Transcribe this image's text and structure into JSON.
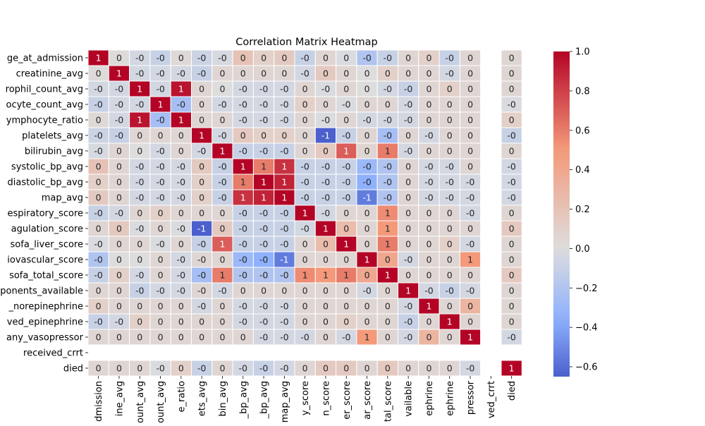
{
  "chart_data": {
    "type": "heatmap",
    "title": "Correlation Matrix Heatmap",
    "row_labels": [
      "ge_at_admission",
      "creatinine_avg",
      "rophil_count_avg",
      "ocyte_count_avg",
      "ymphocyte_ratio",
      "platelets_avg",
      "bilirubin_avg",
      "systolic_bp_avg",
      "diastolic_bp_avg",
      "map_avg",
      "espiratory_score",
      "agulation_score",
      "sofa_liver_score",
      "iovascular_score",
      "sofa_total_score",
      "ponents_available",
      "_norepinephrine",
      "ved_epinephrine",
      "any_vasopressor",
      "received_crrt",
      "died"
    ],
    "col_labels": [
      "dmission",
      "ine_avg",
      "ount_avg",
      "ount_avg",
      "e_ratio",
      "ets_avg",
      "bin_avg",
      "_bp_avg",
      "_bp_avg",
      "map_avg",
      "y_score",
      "n_score",
      "er_score",
      "ar_score",
      "tal_score",
      "vailable",
      "ephrine",
      "ephrine",
      "pressor",
      "ved_crrt",
      "died"
    ],
    "annotations": [
      [
        "1",
        "0",
        "-0",
        "-0",
        "0",
        "-0",
        "-0",
        "0",
        "0",
        "0",
        "-0",
        "0",
        "0",
        "-0",
        "-0",
        "0",
        "0",
        "-0",
        "0",
        "",
        "0"
      ],
      [
        "0",
        "1",
        "-0",
        "-0",
        "-0",
        "-0",
        "0",
        "0",
        "0",
        "0",
        "-0",
        "0",
        "0",
        "0",
        "0",
        "0",
        "0",
        "-0",
        "0",
        "",
        "0"
      ],
      [
        "-0",
        "-0",
        "1",
        "-0",
        "1",
        "0",
        "0",
        "-0",
        "-0",
        "-0",
        "0",
        "-0",
        "0",
        "0",
        "-0",
        "-0",
        "0",
        "0",
        "0",
        "",
        "0"
      ],
      [
        "-0",
        "-0",
        "-0",
        "1",
        "-0",
        "0",
        "-0",
        "-0",
        "-0",
        "-0",
        "0",
        "0",
        "-0",
        "0",
        "0",
        "-0",
        "0",
        "0",
        "0",
        "",
        "-0"
      ],
      [
        "0",
        "-0",
        "1",
        "-0",
        "1",
        "0",
        "0",
        "-0",
        "-0",
        "-0",
        "0",
        "-0",
        "0",
        "-0",
        "-0",
        "-0",
        "0",
        "0",
        "0",
        "",
        "0"
      ],
      [
        "-0",
        "-0",
        "0",
        "0",
        "0",
        "1",
        "-0",
        "0",
        "0",
        "0",
        "0",
        "-1",
        "-0",
        "0",
        "-0",
        "0",
        "-0",
        "0",
        "0",
        "",
        "-0"
      ],
      [
        "-0",
        "0",
        "0",
        "-0",
        "0",
        "-0",
        "1",
        "-0",
        "-0",
        "-0",
        "0",
        "0",
        "1",
        "0",
        "1",
        "-0",
        "0",
        "0",
        "0",
        "",
        "0"
      ],
      [
        "0",
        "0",
        "-0",
        "-0",
        "-0",
        "0",
        "-0",
        "1",
        "1",
        "1",
        "-0",
        "-0",
        "-0",
        "-0",
        "-0",
        "0",
        "-0",
        "-0",
        "0",
        "",
        "-0"
      ],
      [
        "0",
        "0",
        "-0",
        "-0",
        "-0",
        "0",
        "-0",
        "1",
        "1",
        "1",
        "-0",
        "-0",
        "-0",
        "-0",
        "-0",
        "0",
        "-0",
        "-0",
        "-0",
        "",
        "-0"
      ],
      [
        "0",
        "0",
        "-0",
        "-0",
        "-0",
        "0",
        "-0",
        "1",
        "1",
        "1",
        "-0",
        "-0",
        "-0",
        "-1",
        "-0",
        "0",
        "-0",
        "-0",
        "-0",
        "",
        "-0"
      ],
      [
        "-0",
        "-0",
        "0",
        "0",
        "0",
        "0",
        "0",
        "-0",
        "-0",
        "-0",
        "1",
        "-0",
        "0",
        "0",
        "1",
        "0",
        "0",
        "0",
        "-0",
        "",
        "0"
      ],
      [
        "0",
        "0",
        "-0",
        "0",
        "-0",
        "-1",
        "0",
        "-0",
        "-0",
        "-0",
        "-0",
        "1",
        "0",
        "0",
        "1",
        "0",
        "0",
        "0",
        "0",
        "",
        "0"
      ],
      [
        "-0",
        "0",
        "0",
        "-0",
        "0",
        "-0",
        "1",
        "-0",
        "-0",
        "-0",
        "0",
        "0",
        "1",
        "0",
        "1",
        "0",
        "0",
        "0",
        "-0",
        "",
        "0"
      ],
      [
        "-0",
        "0",
        "0",
        "0",
        "-0",
        "-0",
        "0",
        "-0",
        "-0",
        "-1",
        "0",
        "0",
        "0",
        "1",
        "0",
        "-0",
        "0",
        "0",
        "1",
        "",
        "0"
      ],
      [
        "-0",
        "0",
        "-0",
        "0",
        "-0",
        "-0",
        "1",
        "-0",
        "-0",
        "-0",
        "1",
        "1",
        "1",
        "0",
        "1",
        "0",
        "0",
        "0",
        "0",
        "",
        "0"
      ],
      [
        "0",
        "0",
        "-0",
        "-0",
        "-0",
        "-0",
        "-0",
        "0",
        "0",
        "0",
        "0",
        "0",
        "0",
        "-0",
        "0",
        "1",
        "-0",
        "-0",
        "-0",
        "",
        "0"
      ],
      [
        "0",
        "0",
        "0",
        "0",
        "0",
        "-0",
        "0",
        "-0",
        "-0",
        "-0",
        "0",
        "0",
        "0",
        "0",
        "0",
        "-0",
        "1",
        "0",
        "0",
        "",
        "0"
      ],
      [
        "-0",
        "-0",
        "0",
        "0",
        "0",
        "0",
        "0",
        "-0",
        "-0",
        "-0",
        "0",
        "0",
        "0",
        "0",
        "0",
        "-0",
        "0",
        "1",
        "0",
        "",
        "0"
      ],
      [
        "0",
        "0",
        "0",
        "0",
        "0",
        "0",
        "0",
        "0",
        "-0",
        "-0",
        "-0",
        "0",
        "-0",
        "1",
        "0",
        "-0",
        "0",
        "0",
        "1",
        "",
        "-0"
      ],
      [
        "",
        "",
        "",
        "",
        "",
        "",
        "",
        "",
        "",
        "",
        "",
        "",
        "",
        "",
        "",
        "",
        "",
        "",
        "",
        "",
        ""
      ],
      [
        "0",
        "0",
        "0",
        "-0",
        "0",
        "-0",
        "0",
        "-0",
        "-0",
        "-0",
        "0",
        "0",
        "0",
        "0",
        "0",
        "0",
        "0",
        "0",
        "-0",
        "",
        "1"
      ]
    ],
    "values": [
      [
        1,
        0.02,
        -0.05,
        -0.1,
        0.03,
        -0.08,
        -0.03,
        0.2,
        0.1,
        0.15,
        -0.1,
        0.05,
        -0.02,
        -0.2,
        -0.1,
        0.05,
        0.1,
        -0.1,
        0.05,
        null,
        0.05
      ],
      [
        0.02,
        1,
        -0.05,
        -0.05,
        -0.05,
        -0.1,
        0.05,
        0.05,
        0.05,
        0.05,
        -0.05,
        0.15,
        0.05,
        0.0,
        0.1,
        0.05,
        0.05,
        -0.05,
        0.05,
        null,
        0.05
      ],
      [
        -0.05,
        -0.05,
        1,
        -0.05,
        0.95,
        0.05,
        0.0,
        -0.05,
        -0.05,
        -0.05,
        0.05,
        -0.02,
        0.05,
        0.0,
        -0.05,
        -0.1,
        0.05,
        0.1,
        0.05,
        null,
        0.05
      ],
      [
        -0.1,
        -0.05,
        -0.05,
        1,
        -0.25,
        0.05,
        -0.05,
        -0.05,
        -0.05,
        -0.05,
        0.1,
        0.05,
        -0.02,
        0.05,
        0.05,
        -0.05,
        0.05,
        0.05,
        0.05,
        null,
        -0.02
      ],
      [
        0.03,
        -0.05,
        0.95,
        -0.25,
        1,
        0.05,
        0.05,
        -0.05,
        -0.05,
        -0.05,
        0.05,
        -0.02,
        0.05,
        -0.05,
        -0.05,
        -0.05,
        0.05,
        0.05,
        0.05,
        null,
        0.1
      ],
      [
        -0.08,
        -0.1,
        0.05,
        0.05,
        0.05,
        1,
        -0.05,
        0.15,
        0.1,
        0.1,
        0.05,
        -0.65,
        -0.1,
        0.05,
        -0.25,
        0.05,
        -0.05,
        0.05,
        0.05,
        null,
        -0.1
      ],
      [
        -0.03,
        0.05,
        0.0,
        -0.05,
        0.05,
        -0.05,
        1,
        -0.1,
        -0.1,
        -0.1,
        0.05,
        0.15,
        0.7,
        0.05,
        0.6,
        -0.05,
        0.05,
        0.05,
        0.05,
        null,
        0.05
      ],
      [
        0.2,
        0.05,
        -0.05,
        -0.05,
        -0.05,
        0.15,
        -0.1,
        1,
        0.6,
        0.85,
        -0.1,
        -0.1,
        -0.1,
        -0.3,
        -0.2,
        0.05,
        -0.05,
        -0.05,
        0.05,
        null,
        -0.05
      ],
      [
        0.1,
        0.05,
        -0.05,
        -0.05,
        -0.05,
        0.1,
        -0.1,
        0.6,
        1,
        0.9,
        -0.1,
        -0.1,
        -0.1,
        -0.35,
        -0.2,
        0.05,
        -0.05,
        -0.05,
        -0.05,
        null,
        -0.05
      ],
      [
        0.15,
        0.05,
        -0.05,
        -0.05,
        -0.05,
        0.1,
        -0.1,
        0.85,
        0.9,
        1,
        -0.1,
        -0.1,
        -0.1,
        -0.55,
        -0.2,
        0.05,
        -0.05,
        -0.05,
        -0.05,
        null,
        -0.05
      ],
      [
        -0.1,
        -0.05,
        0.05,
        0.1,
        0.05,
        0.05,
        0.05,
        -0.1,
        -0.1,
        -0.1,
        1,
        -0.05,
        0.05,
        0.05,
        0.55,
        0.05,
        0.05,
        0.05,
        -0.05,
        null,
        0.05
      ],
      [
        0.05,
        0.15,
        -0.02,
        0.05,
        -0.02,
        -0.65,
        0.15,
        -0.1,
        -0.1,
        -0.1,
        -0.05,
        1,
        0.25,
        0.05,
        0.5,
        0.05,
        0.05,
        0.05,
        0.05,
        null,
        0.15
      ],
      [
        -0.02,
        0.05,
        0.05,
        -0.02,
        0.05,
        -0.1,
        0.7,
        -0.1,
        -0.1,
        -0.1,
        0.05,
        0.25,
        1,
        0.05,
        0.6,
        0.05,
        0.05,
        0.1,
        -0.05,
        null,
        0.05
      ],
      [
        -0.2,
        0.0,
        0.0,
        0.05,
        -0.05,
        0.05,
        0.05,
        -0.3,
        -0.35,
        -0.55,
        0.05,
        0.05,
        0.05,
        1,
        0.4,
        -0.05,
        0.05,
        0.05,
        0.5,
        null,
        0.05
      ],
      [
        -0.1,
        0.1,
        -0.05,
        0.05,
        -0.05,
        -0.25,
        0.6,
        -0.2,
        -0.2,
        -0.2,
        0.55,
        0.5,
        0.6,
        0.4,
        1,
        0.05,
        0.05,
        0.05,
        0.05,
        null,
        0.15
      ],
      [
        0.05,
        0.05,
        -0.1,
        -0.05,
        -0.05,
        0.05,
        -0.05,
        0.05,
        0.05,
        0.05,
        0.05,
        0.05,
        0.05,
        -0.05,
        0.05,
        1,
        -0.05,
        -0.1,
        -0.05,
        null,
        0.05
      ],
      [
        0.1,
        0.05,
        0.05,
        0.05,
        0.05,
        -0.05,
        0.05,
        -0.05,
        -0.05,
        -0.05,
        0.05,
        0.05,
        0.05,
        0.05,
        0.05,
        -0.05,
        1,
        0.05,
        0.3,
        null,
        0.05
      ],
      [
        -0.1,
        -0.05,
        0.1,
        0.05,
        0.05,
        0.05,
        0.05,
        -0.05,
        -0.05,
        -0.05,
        0.05,
        0.05,
        0.1,
        0.05,
        0.05,
        -0.1,
        0.05,
        1,
        0.05,
        null,
        0.05
      ],
      [
        0.05,
        0.05,
        0.05,
        0.05,
        0.05,
        0.05,
        0.05,
        0.05,
        -0.05,
        -0.05,
        -0.05,
        0.05,
        -0.05,
        0.5,
        0.05,
        -0.05,
        0.3,
        0.05,
        1,
        null,
        -0.05
      ],
      [
        null,
        null,
        null,
        null,
        null,
        null,
        null,
        null,
        null,
        null,
        null,
        null,
        null,
        null,
        null,
        null,
        null,
        null,
        null,
        null,
        null
      ],
      [
        0.05,
        0.05,
        0.05,
        -0.02,
        0.1,
        -0.1,
        0.05,
        -0.05,
        -0.1,
        -0.05,
        0.05,
        0.15,
        0.15,
        0.05,
        0.15,
        0.05,
        0.05,
        0.05,
        -0.05,
        null,
        1
      ]
    ],
    "colorbar": {
      "vmin": -0.65,
      "vmax": 1.0,
      "ticks": [
        -0.6,
        -0.4,
        -0.2,
        0.0,
        0.2,
        0.4,
        0.6,
        0.8,
        1.0
      ],
      "tick_labels": [
        "−0.6",
        "−0.4",
        "−0.2",
        "0.0",
        "0.2",
        "0.4",
        "0.6",
        "0.8",
        "1.0"
      ],
      "colormap": "coolwarm"
    },
    "colors": {
      "low": "#3b4cc0",
      "mid": "#dddddd",
      "high": "#b40426",
      "empty": "#ffffff"
    }
  }
}
